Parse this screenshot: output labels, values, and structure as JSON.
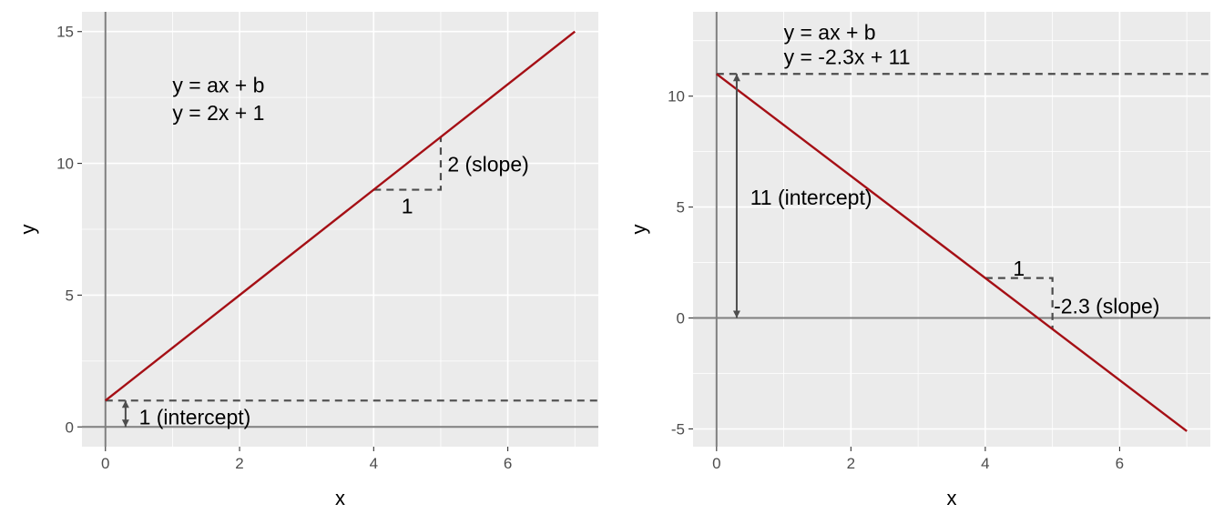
{
  "chart_data": [
    {
      "type": "line",
      "xlabel": "x",
      "ylabel": "y",
      "xlim": [
        -0.35,
        7.35
      ],
      "ylim": [
        -0.75,
        15.75
      ],
      "x_ticks": [
        0,
        2,
        4,
        6
      ],
      "y_ticks": [
        0,
        5,
        10,
        15
      ],
      "x_tick_labels": [
        "0",
        "2",
        "4",
        "6"
      ],
      "y_tick_labels": [
        "0",
        "5",
        "10",
        "15"
      ],
      "grid": true,
      "line": {
        "a": 2,
        "b": 1,
        "x": [
          0,
          7
        ],
        "y": [
          1,
          15
        ],
        "color": "#a50f15"
      },
      "reference_lines": {
        "hline": 0,
        "vline": 0
      },
      "intercept_hline": 1,
      "intercept_arrow": {
        "x": 0.3,
        "y_from": 0,
        "y_to": 1
      },
      "slope_triangle": {
        "x": [
          4,
          5
        ],
        "y": [
          9,
          11
        ]
      },
      "annotations": {
        "equation_general": "y = ax + b",
        "equation": "y = 2x + 1",
        "run_label": "1",
        "rise_label": "2 (slope)",
        "intercept_label": "1 (intercept)"
      }
    },
    {
      "type": "line",
      "xlabel": "x",
      "ylabel": "y",
      "xlim": [
        -0.35,
        7.35
      ],
      "ylim": [
        -5.8,
        13.8
      ],
      "x_ticks": [
        0,
        2,
        4,
        6
      ],
      "y_ticks": [
        -5,
        0,
        5,
        10
      ],
      "x_tick_labels": [
        "0",
        "2",
        "4",
        "6"
      ],
      "y_tick_labels": [
        "-5",
        "0",
        "5",
        "10"
      ],
      "grid": true,
      "line": {
        "a": -2.3,
        "b": 11,
        "x": [
          0,
          7
        ],
        "y": [
          11,
          -5.1
        ],
        "color": "#a50f15"
      },
      "reference_lines": {
        "hline": 0,
        "vline": 0
      },
      "intercept_hline": 11,
      "intercept_arrow": {
        "x": 0.3,
        "y_from": 0,
        "y_to": 11
      },
      "slope_triangle": {
        "x": [
          4,
          5
        ],
        "y": [
          1.8,
          -0.5
        ]
      },
      "annotations": {
        "equation_general": "y = ax + b",
        "equation": "y = -2.3x + 11",
        "run_label": "1",
        "rise_label": "-2.3 (slope)",
        "intercept_label": "11 (intercept)"
      }
    }
  ]
}
